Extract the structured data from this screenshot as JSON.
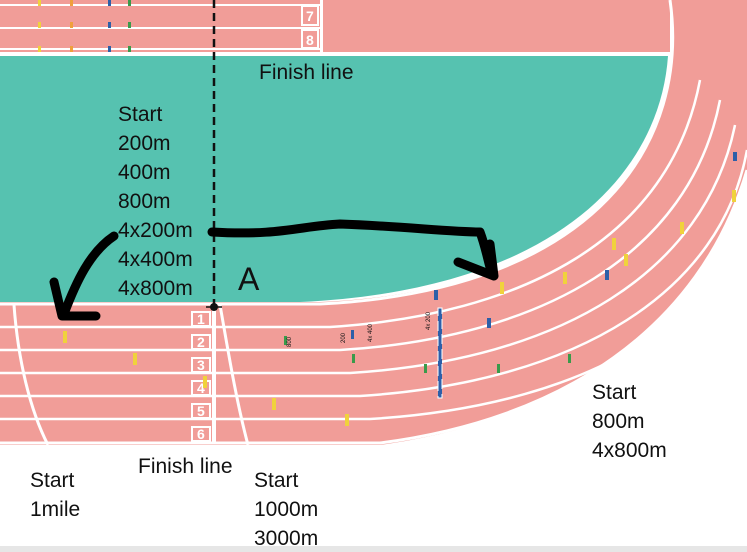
{
  "colors": {
    "track": "#f19d98",
    "infield": "#56c2b0",
    "lane_line": "#ffffff",
    "arrow": "#000000",
    "mark_yellow": "#f0d23c",
    "mark_blue": "#2d5fa8",
    "mark_green": "#3a9a4a",
    "mark_orange": "#f0a03c"
  },
  "labels": {
    "finish_top": "Finish line",
    "finish_bottom": "Finish line",
    "point_a": "A",
    "start_infield": [
      "Start",
      "200m",
      "400m",
      "800m",
      "4x200m",
      "4x400m",
      "4x800m"
    ],
    "start_1mile": [
      "Start",
      "1mile"
    ],
    "start_1000": [
      "Start",
      "1000m",
      "3000m"
    ],
    "start_800": [
      "Start",
      "800m",
      "4x800m"
    ]
  },
  "lane_numbers_bottom": [
    "1",
    "2",
    "3",
    "4",
    "5",
    "6"
  ],
  "lane_numbers_top": [
    "7",
    "8"
  ],
  "tiny_marks": [
    "800",
    "200",
    "4x 400",
    "4x 200"
  ]
}
